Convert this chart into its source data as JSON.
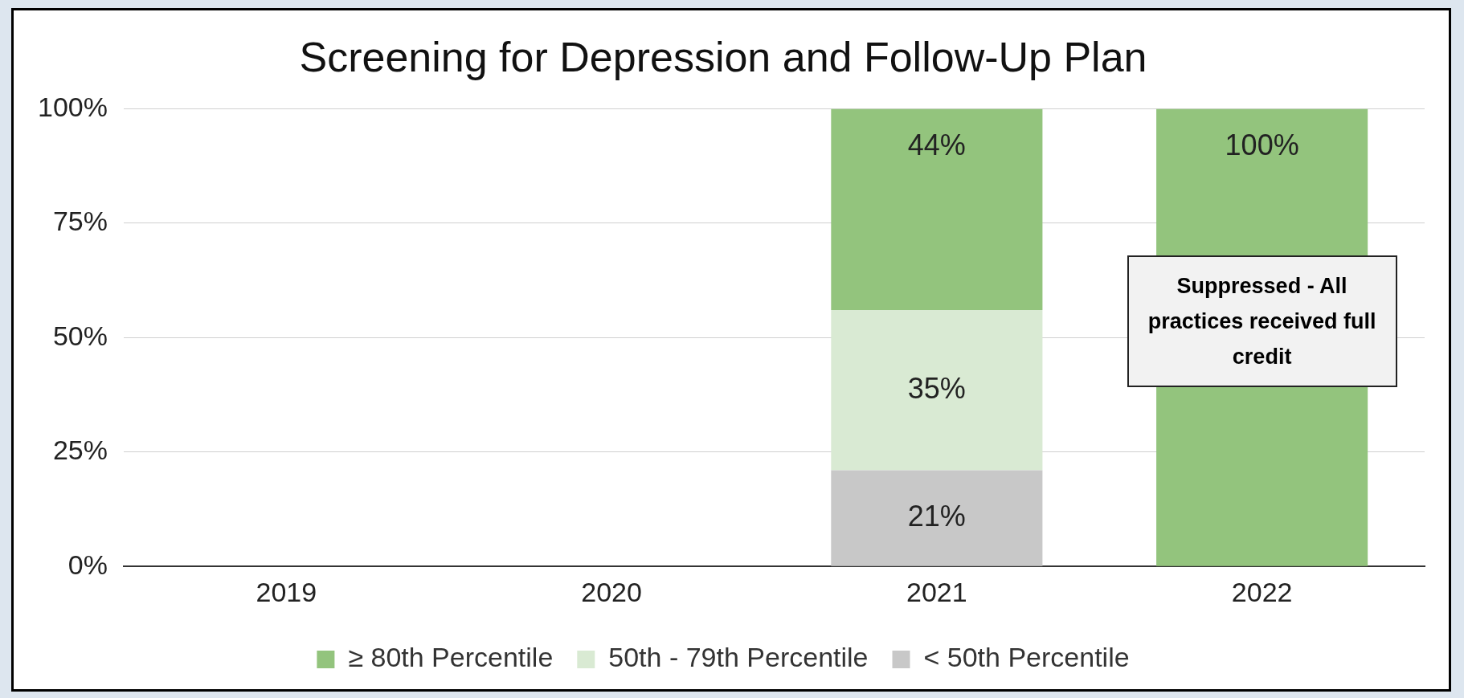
{
  "chart_data": {
    "type": "bar",
    "title": "Screening for Depression and Follow-Up Plan",
    "categories": [
      "2019",
      "2020",
      "2021",
      "2022"
    ],
    "stacked": true,
    "series": [
      {
        "name": "< 50th Percentile",
        "color": "#c8c8c8",
        "values": [
          null,
          null,
          21,
          null
        ],
        "value_labels": [
          null,
          null,
          "21%",
          null
        ]
      },
      {
        "name": "50th - 79th Percentile",
        "color": "#d9ead3",
        "values": [
          null,
          null,
          35,
          null
        ],
        "value_labels": [
          null,
          null,
          "35%",
          null
        ]
      },
      {
        "name": "≥ 80th Percentile",
        "color": "#93c47d",
        "values": [
          null,
          null,
          44,
          100
        ],
        "value_labels": [
          null,
          null,
          "44%",
          "100%"
        ]
      }
    ],
    "ylim": [
      0,
      100
    ],
    "yticks": [
      {
        "value": 0,
        "label": "0%"
      },
      {
        "value": 25,
        "label": "25%"
      },
      {
        "value": 50,
        "label": "50%"
      },
      {
        "value": 75,
        "label": "75%"
      },
      {
        "value": 100,
        "label": "100%"
      }
    ],
    "grid": "y",
    "legend": "bottom",
    "annotations": [
      "Suppressed - All practices received full credit"
    ]
  }
}
